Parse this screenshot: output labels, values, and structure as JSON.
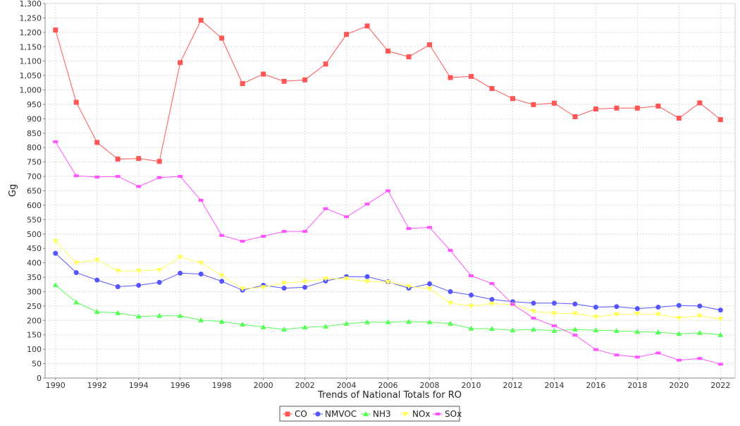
{
  "chart_data": {
    "type": "line",
    "title": "",
    "xlabel": "Trends of National Totals for RO",
    "ylabel": "Gg",
    "xlim": [
      1989.5,
      2022.7
    ],
    "ylim": [
      0,
      1300
    ],
    "grid": true,
    "legend_position": "bottom-center",
    "x": [
      1990,
      1991,
      1992,
      1993,
      1994,
      1995,
      1996,
      1997,
      1998,
      1999,
      2000,
      2001,
      2002,
      2003,
      2004,
      2005,
      2006,
      2007,
      2008,
      2009,
      2010,
      2011,
      2012,
      2013,
      2014,
      2015,
      2016,
      2017,
      2018,
      2019,
      2020,
      2021,
      2022
    ],
    "x_ticks": [
      "1990",
      "1992",
      "1994",
      "1996",
      "1998",
      "2000",
      "2002",
      "2004",
      "2006",
      "2008",
      "2010",
      "2012",
      "2014",
      "2016",
      "2018",
      "2020",
      "2022"
    ],
    "y_ticks": [
      "0",
      "50",
      "100",
      "150",
      "200",
      "250",
      "300",
      "350",
      "400",
      "450",
      "500",
      "550",
      "600",
      "650",
      "700",
      "750",
      "800",
      "850",
      "900",
      "950",
      "1,000",
      "1,050",
      "1,100",
      "1,150",
      "1,200",
      "1,250",
      "1,300"
    ],
    "series": [
      {
        "name": "CO",
        "color": "#ff5555",
        "marker": "square",
        "values": [
          1208,
          957,
          818,
          760,
          762,
          752,
          1095,
          1242,
          1180,
          1022,
          1055,
          1030,
          1035,
          1090,
          1193,
          1222,
          1135,
          1115,
          1157,
          1043,
          1047,
          1005,
          970,
          949,
          954,
          907,
          934,
          937,
          937,
          944,
          902,
          955,
          897
        ]
      },
      {
        "name": "NMVOC",
        "color": "#5555ff",
        "marker": "circle",
        "values": [
          433,
          366,
          340,
          317,
          322,
          332,
          364,
          361,
          336,
          305,
          322,
          312,
          315,
          337,
          352,
          352,
          334,
          312,
          327,
          300,
          288,
          273,
          265,
          260,
          260,
          257,
          246,
          248,
          241,
          246,
          252,
          250,
          236
        ]
      },
      {
        "name": "NH3",
        "color": "#55ff55",
        "marker": "triangle",
        "values": [
          323,
          263,
          230,
          226,
          214,
          216,
          216,
          201,
          196,
          186,
          177,
          169,
          176,
          179,
          189,
          194,
          194,
          196,
          194,
          189,
          172,
          171,
          166,
          169,
          164,
          169,
          166,
          164,
          161,
          159,
          154,
          157,
          150
        ]
      },
      {
        "name": "NOx",
        "color": "#ffff55",
        "marker": "triangle-down",
        "values": [
          475,
          400,
          410,
          372,
          372,
          375,
          420,
          400,
          356,
          310,
          315,
          330,
          335,
          345,
          345,
          335,
          333,
          318,
          310,
          260,
          250,
          258,
          255,
          232,
          224,
          224,
          212,
          221,
          223,
          221,
          208,
          216,
          205
        ]
      },
      {
        "name": "SOx",
        "color": "#ff55ff",
        "marker": "bar",
        "values": [
          820,
          702,
          698,
          700,
          665,
          696,
          700,
          617,
          495,
          475,
          492,
          509,
          509,
          588,
          560,
          604,
          650,
          519,
          523,
          443,
          355,
          328,
          256,
          208,
          181,
          149,
          99,
          80,
          73,
          87,
          62,
          68,
          48
        ]
      }
    ]
  }
}
